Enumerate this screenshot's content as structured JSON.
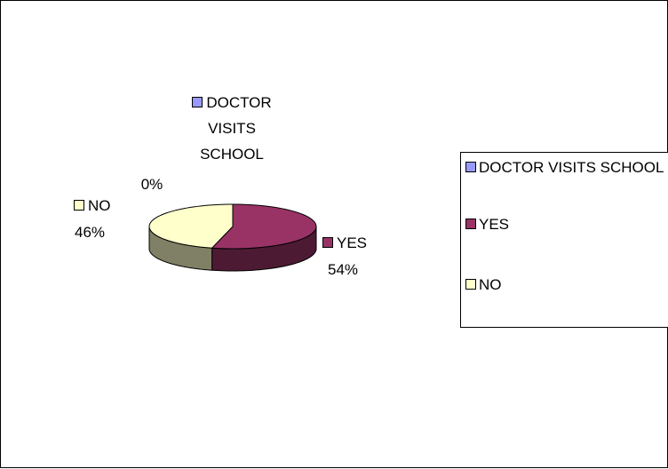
{
  "chart_data": {
    "type": "pie",
    "categories": [
      "DOCTOR VISITS SCHOOL",
      "YES",
      "NO"
    ],
    "values": [
      0,
      54,
      46
    ],
    "value_labels": [
      "0%",
      "54%",
      "46%"
    ],
    "colors": [
      "#9999ff",
      "#993366",
      "#ffffcc"
    ],
    "legend": "right"
  }
}
